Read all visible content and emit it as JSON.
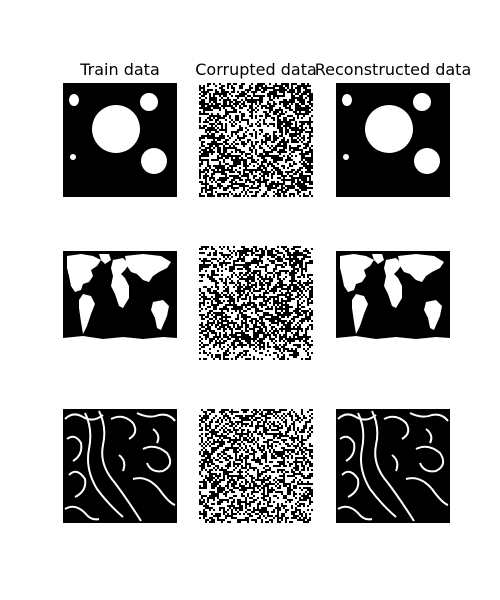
{
  "titles": {
    "col1": "Train data",
    "col2": "Corrupted data",
    "col3": "Reconstructed data"
  },
  "colors": {
    "background": "#ffffff",
    "foreground": "#ffffff",
    "panel": "#000000"
  },
  "rows": [
    {
      "content": "circles",
      "train": "circles-pattern",
      "corrupted": "noise-pattern",
      "reconstructed": "circles-pattern"
    },
    {
      "content": "world-map",
      "train": "map-pattern",
      "corrupted": "noise-pattern",
      "reconstructed": "map-pattern"
    },
    {
      "content": "edge-drawing",
      "train": "edges-pattern",
      "corrupted": "noise-pattern",
      "reconstructed": "edges-pattern"
    }
  ]
}
